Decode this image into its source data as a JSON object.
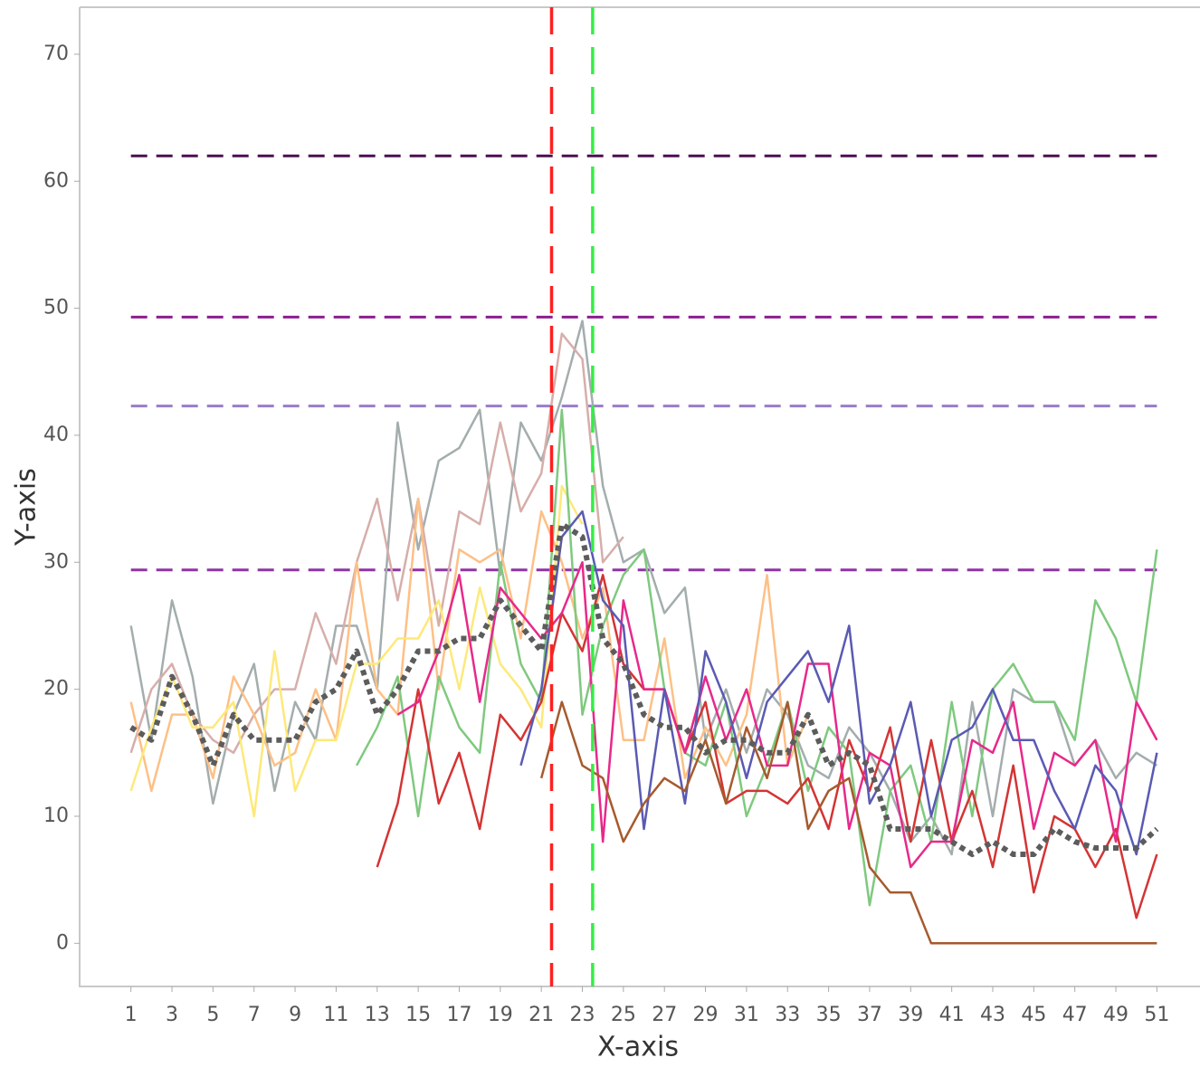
{
  "chart_data": {
    "type": "line",
    "x_label": "X-axis",
    "y_label": "Y-axis",
    "x": [
      1,
      2,
      3,
      4,
      5,
      6,
      7,
      8,
      9,
      10,
      11,
      12,
      13,
      14,
      15,
      16,
      17,
      18,
      19,
      20,
      21,
      22,
      23,
      24,
      25,
      26,
      27,
      28,
      29,
      30,
      31,
      32,
      33,
      34,
      35,
      36,
      37,
      38,
      39,
      40,
      41,
      42,
      43,
      44,
      45,
      46,
      47,
      48,
      49,
      50,
      51
    ],
    "xlim": [
      -1.5,
      53.1
    ],
    "ylim": [
      -3.4,
      73.7
    ],
    "xticks": [
      1,
      3,
      5,
      7,
      9,
      11,
      13,
      15,
      17,
      19,
      21,
      23,
      25,
      27,
      29,
      31,
      33,
      35,
      37,
      39,
      41,
      43,
      45,
      47,
      49,
      51
    ],
    "yticks": [
      0,
      10,
      20,
      30,
      40,
      50,
      60,
      70
    ],
    "hlines": [
      {
        "value": 62,
        "color": "#4b0f50"
      },
      {
        "value": 49.3,
        "color": "#8a1f8e"
      },
      {
        "value": 42.3,
        "color": "#9a7cc8"
      },
      {
        "value": 29.4,
        "color": "#8e35a3"
      }
    ],
    "vlines": [
      {
        "value": 21.5,
        "color": "#ff2020"
      },
      {
        "value": 23.5,
        "color": "#33ee44"
      }
    ],
    "series": [
      {
        "color": "#a4adad",
        "values": [
          25,
          16,
          27,
          21,
          11,
          18,
          22,
          12,
          19,
          16,
          25,
          25,
          20,
          41,
          31,
          38,
          39,
          42,
          29,
          41,
          38,
          43,
          49,
          36,
          30,
          31,
          26,
          28,
          16,
          20,
          15,
          20,
          18,
          14,
          13,
          17,
          15,
          12,
          8,
          10,
          7,
          19,
          10,
          20,
          19,
          19,
          14,
          16,
          13,
          15,
          14
        ]
      },
      {
        "color": "#d6aeaa",
        "values": [
          15,
          20,
          22,
          18,
          16,
          15,
          18,
          20,
          20,
          26,
          22,
          30,
          35,
          27,
          35,
          25,
          34,
          33,
          41,
          34,
          37,
          48,
          46,
          30,
          32,
          null,
          null,
          null,
          null,
          null,
          null,
          null,
          null,
          null,
          null,
          null,
          null,
          null,
          null,
          null,
          null,
          null,
          null,
          null,
          null,
          null,
          null,
          null,
          null,
          null,
          null
        ]
      },
      {
        "color": "#fdc086",
        "values": [
          19,
          12,
          18,
          18,
          13,
          21,
          18,
          14,
          15,
          20,
          16,
          30,
          20,
          18,
          35,
          20,
          31,
          30,
          31,
          24,
          34,
          30,
          24,
          28,
          16,
          16,
          24,
          13,
          17,
          14,
          18,
          29,
          14,
          18,
          null,
          null,
          null,
          null,
          null,
          null,
          null,
          null,
          null,
          null,
          null,
          null,
          null,
          null,
          null,
          null,
          null
        ]
      },
      {
        "color": "#fde97a",
        "values": [
          12,
          17,
          21,
          17,
          17,
          19,
          10,
          23,
          12,
          16,
          16,
          22,
          22,
          24,
          24,
          27,
          20,
          28,
          22,
          20,
          17,
          36,
          33,
          null,
          null,
          null,
          null,
          null,
          null,
          null,
          null,
          null,
          null,
          null,
          null,
          null,
          null,
          null,
          null,
          null,
          null,
          null,
          null,
          null,
          null,
          null,
          null,
          null,
          null,
          null,
          null
        ]
      },
      {
        "color": "#7fc97f",
        "values": [
          null,
          null,
          null,
          null,
          null,
          null,
          null,
          null,
          null,
          null,
          null,
          14,
          17,
          21,
          10,
          21,
          17,
          15,
          30,
          22,
          19,
          42,
          18,
          25,
          29,
          31,
          20,
          15,
          14,
          19,
          10,
          14,
          19,
          12,
          17,
          15,
          3,
          12,
          14,
          8,
          19,
          10,
          20,
          22,
          19,
          19,
          16,
          27,
          24,
          19,
          31
        ]
      },
      {
        "color": "#d43434",
        "values": [
          null,
          null,
          null,
          null,
          null,
          null,
          null,
          null,
          null,
          null,
          null,
          null,
          6,
          11,
          20,
          11,
          15,
          9,
          18,
          16,
          19,
          26,
          23,
          29,
          22,
          20,
          20,
          15,
          19,
          11,
          12,
          12,
          11,
          13,
          9,
          16,
          12,
          17,
          8,
          16,
          8,
          12,
          6,
          14,
          4,
          10,
          9,
          6,
          9,
          2,
          7
        ]
      },
      {
        "color": "#e7298a",
        "values": [
          null,
          null,
          null,
          null,
          null,
          null,
          null,
          null,
          null,
          null,
          null,
          null,
          null,
          18,
          19,
          23,
          29,
          19,
          28,
          26,
          24,
          26,
          30,
          8,
          27,
          20,
          20,
          15,
          21,
          16,
          20,
          14,
          14,
          22,
          22,
          9,
          15,
          14,
          6,
          8,
          8,
          16,
          15,
          19,
          9,
          15,
          14,
          16,
          8,
          19,
          16
        ]
      },
      {
        "color": "#5a5ab4",
        "values": [
          null,
          null,
          null,
          null,
          null,
          null,
          null,
          null,
          null,
          null,
          null,
          null,
          null,
          null,
          null,
          null,
          null,
          null,
          null,
          14,
          20,
          32,
          34,
          27,
          25,
          9,
          20,
          11,
          23,
          19,
          13,
          19,
          21,
          23,
          19,
          25,
          11,
          14,
          19,
          10,
          16,
          17,
          20,
          16,
          16,
          12,
          9,
          14,
          12,
          7,
          15
        ]
      },
      {
        "color": "#a65a2d",
        "values": [
          null,
          null,
          null,
          null,
          null,
          null,
          null,
          null,
          null,
          null,
          null,
          null,
          null,
          null,
          null,
          null,
          null,
          null,
          null,
          null,
          13,
          19,
          14,
          13,
          8,
          11,
          13,
          12,
          16,
          11,
          17,
          13,
          19,
          9,
          12,
          13,
          6,
          4,
          4,
          0,
          0,
          0,
          0,
          0,
          0,
          0,
          0,
          0,
          0,
          0,
          0
        ]
      },
      {
        "color": "#5c5c5c",
        "dotted": true,
        "values": [
          17,
          16,
          21,
          18,
          14,
          18,
          16,
          16,
          16,
          19,
          20,
          23,
          18,
          20,
          23,
          23,
          24,
          24,
          27,
          25,
          23,
          33,
          32,
          24,
          22,
          18,
          17,
          17,
          15,
          16,
          16,
          15,
          15,
          18,
          14,
          15,
          14,
          9,
          9,
          9,
          8,
          7,
          8,
          7,
          7,
          9,
          8,
          7.5,
          7.5,
          7.5,
          9
        ]
      }
    ]
  }
}
